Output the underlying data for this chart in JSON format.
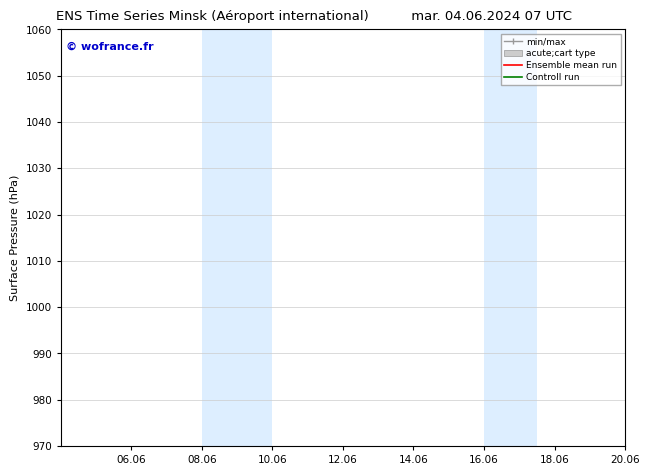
{
  "title_left": "ENS Time Series Minsk (Aéroport international)",
  "title_right": "mar. 04.06.2024 07 UTC",
  "ylabel": "Surface Pressure (hPa)",
  "ylim": [
    970,
    1060
  ],
  "yticks": [
    970,
    980,
    990,
    1000,
    1010,
    1020,
    1030,
    1040,
    1050,
    1060
  ],
  "xtick_labels": [
    "06.06",
    "08.06",
    "10.06",
    "12.06",
    "14.06",
    "16.06",
    "18.06",
    "20.06"
  ],
  "xtick_positions": [
    2,
    4,
    6,
    8,
    10,
    12,
    14,
    16
  ],
  "xlim": [
    0,
    16
  ],
  "shaded_regions": [
    {
      "x_start": 4,
      "x_end": 6,
      "color": "#ddeeff"
    },
    {
      "x_start": 12,
      "x_end": 13.5,
      "color": "#ddeeff"
    }
  ],
  "watermark_text": "© wofrance.fr",
  "watermark_color": "#0000cc",
  "bg_color": "#ffffff",
  "grid_color": "#cccccc",
  "title_fontsize": 9.5,
  "axis_label_fontsize": 8,
  "tick_fontsize": 7.5
}
